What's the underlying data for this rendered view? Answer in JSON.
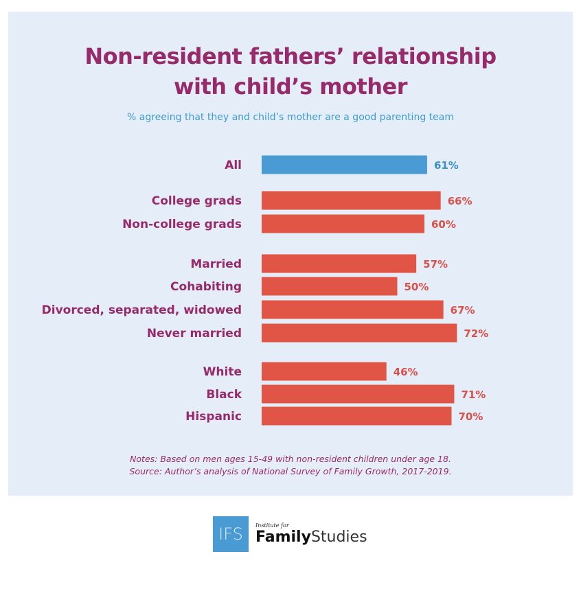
{
  "chart_data": {
    "type": "bar",
    "orientation": "horizontal",
    "title": "Non-resident fathers’ relationship with child’s mother",
    "subtitle": "% agreeing that they and child’s mother are a good parenting team",
    "categories": [
      "All",
      "College grads",
      "Non-college grads",
      "Married",
      "Cohabiting",
      "Divorced, separated, widowed",
      "Never married",
      "White",
      "Black",
      "Hispanic"
    ],
    "values": [
      61,
      66,
      60,
      57,
      50,
      67,
      72,
      46,
      71,
      70
    ],
    "value_labels": [
      "61%",
      "66%",
      "60%",
      "57%",
      "50%",
      "67%",
      "72%",
      "46%",
      "71%",
      "70%"
    ],
    "groups": [
      [
        0
      ],
      [
        1,
        2
      ],
      [
        3,
        4,
        5,
        6
      ],
      [
        7,
        8,
        9
      ]
    ],
    "colors": {
      "highlight": "#4a9ad4",
      "default": "#e05545",
      "highlight_label": "#3d8fc4",
      "default_label": "#d9504a"
    },
    "xlim": [
      0,
      100
    ],
    "grid": false
  },
  "notes": "Notes: Based on men ages 15-49 with non-resident children under age 18.",
  "source": "Source: Author’s analysis of National Survey of Family Growth, 2017-2019.",
  "logo": {
    "mark": "IFS",
    "line1": "Institute for",
    "line2a": "Family",
    "line2b": "Studies"
  }
}
